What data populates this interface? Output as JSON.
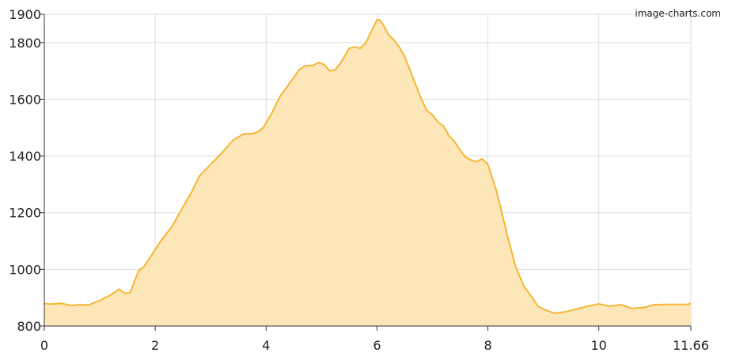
{
  "watermark": "image-charts.com",
  "chart_data": {
    "type": "area",
    "title": "",
    "xlabel": "",
    "ylabel": "",
    "xlim": [
      0,
      11.66
    ],
    "ylim": [
      800,
      1900
    ],
    "x_ticks": [
      0,
      2,
      4,
      6,
      8,
      10,
      11.66
    ],
    "x_tick_labels": [
      "0",
      "2",
      "4",
      "6",
      "8",
      "10",
      "11.66"
    ],
    "y_ticks": [
      800,
      1000,
      1200,
      1400,
      1600,
      1800,
      1900
    ],
    "y_tick_labels": [
      "800",
      "1000",
      "1200",
      "1400",
      "1600",
      "1800",
      "1900"
    ],
    "grid": true,
    "line_color": "#f5b533",
    "fill_color": "#fde7b9",
    "series": [
      {
        "x": [
          0,
          0.1,
          0.3,
          0.5,
          0.6,
          0.8,
          0.9,
          1.0,
          1.2,
          1.35,
          1.45,
          1.55,
          1.7,
          1.8,
          1.9,
          2.1,
          2.3,
          2.5,
          2.65,
          2.8,
          3.0,
          3.2,
          3.4,
          3.6,
          3.75,
          3.85,
          3.95,
          4.1,
          4.25,
          4.4,
          4.6,
          4.7,
          4.85,
          4.95,
          5.05,
          5.15,
          5.25,
          5.35,
          5.5,
          5.6,
          5.7,
          5.8,
          5.9,
          6.0,
          6.05,
          6.12,
          6.2,
          6.3,
          6.4,
          6.5,
          6.6,
          6.7,
          6.8,
          6.9,
          7.0,
          7.1,
          7.2,
          7.3,
          7.4,
          7.5,
          7.6,
          7.7,
          7.8,
          7.9,
          8.0,
          8.05,
          8.15,
          8.25,
          8.35,
          8.5,
          8.65,
          8.8,
          8.9,
          9.0,
          9.2,
          9.4,
          9.6,
          9.8,
          10.0,
          10.2,
          10.4,
          10.6,
          10.8,
          11.0,
          11.2,
          11.4,
          11.6,
          11.66
        ],
        "y": [
          880,
          877,
          880,
          872,
          875,
          874,
          882,
          890,
          910,
          930,
          915,
          918,
          995,
          1010,
          1040,
          1100,
          1150,
          1220,
          1270,
          1330,
          1370,
          1410,
          1455,
          1478,
          1478,
          1485,
          1500,
          1550,
          1610,
          1650,
          1705,
          1718,
          1720,
          1730,
          1722,
          1700,
          1705,
          1730,
          1780,
          1785,
          1780,
          1800,
          1840,
          1880,
          1880,
          1860,
          1830,
          1810,
          1785,
          1750,
          1700,
          1650,
          1600,
          1560,
          1545,
          1520,
          1505,
          1470,
          1450,
          1420,
          1395,
          1385,
          1380,
          1390,
          1370,
          1340,
          1280,
          1200,
          1120,
          1010,
          940,
          900,
          870,
          860,
          845,
          850,
          860,
          870,
          878,
          870,
          875,
          862,
          865,
          875,
          876,
          876,
          876,
          880
        ]
      }
    ]
  }
}
